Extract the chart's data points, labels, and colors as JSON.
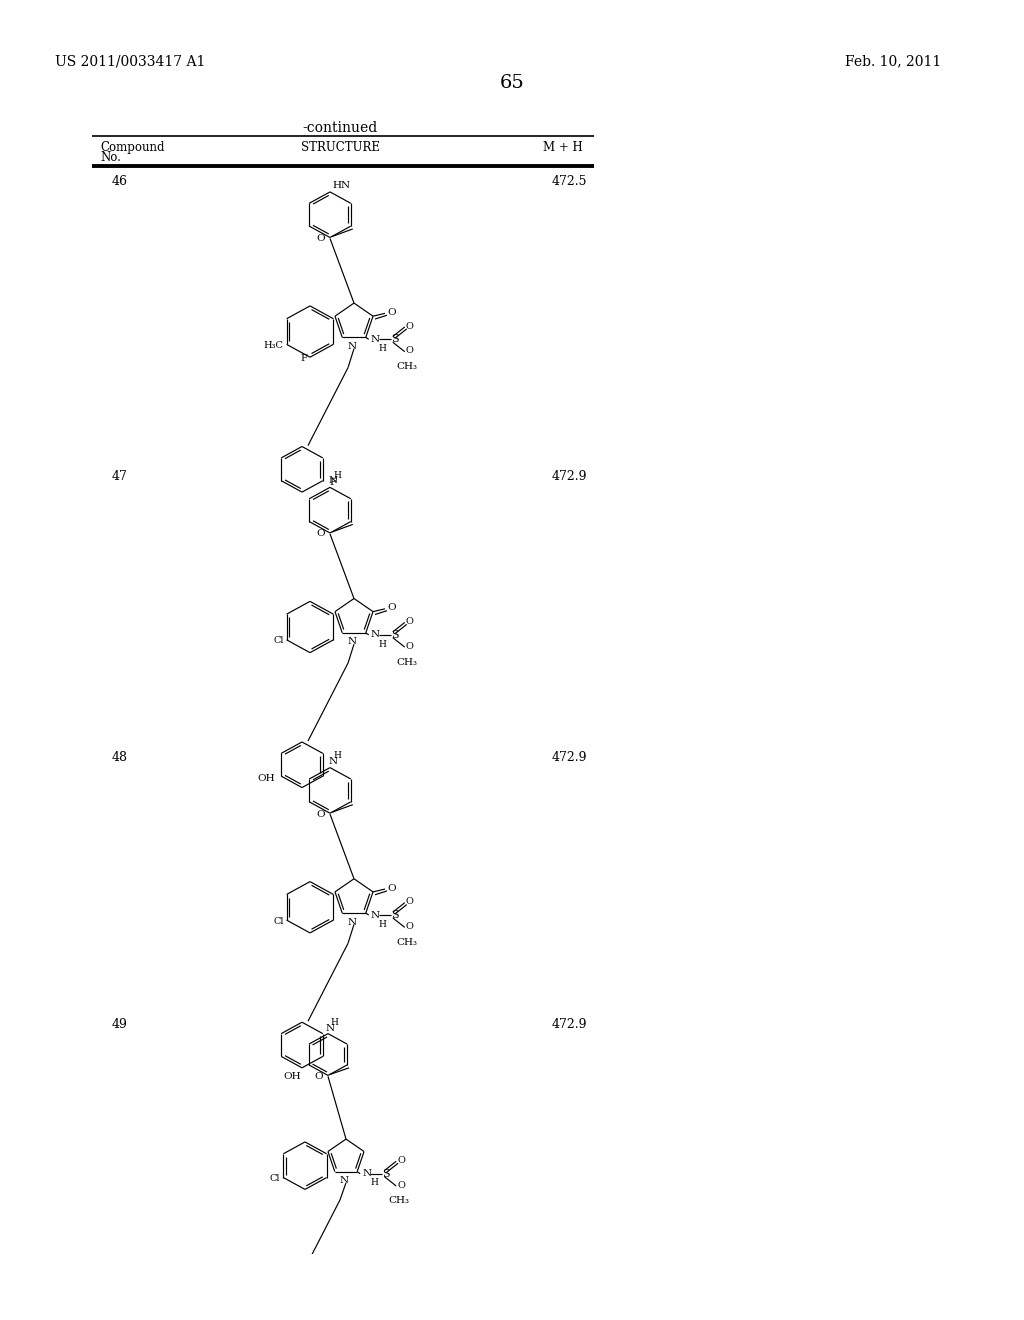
{
  "patent_number": "US 2011/0033417 A1",
  "patent_date": "Feb. 10, 2011",
  "page_number": "65",
  "table_title": "-continued",
  "compounds": [
    {
      "no": "46",
      "mh": "472.5",
      "subst": "F,H3C,F-benzyl"
    },
    {
      "no": "47",
      "mh": "472.9",
      "subst": "Cl,OH-benzyl-ortho"
    },
    {
      "no": "48",
      "mh": "472.9",
      "subst": "Cl,OH-benzyl-para"
    },
    {
      "no": "49",
      "mh": "472.9",
      "subst": "Cl,HO-benzyl-para-no-pyri"
    }
  ]
}
